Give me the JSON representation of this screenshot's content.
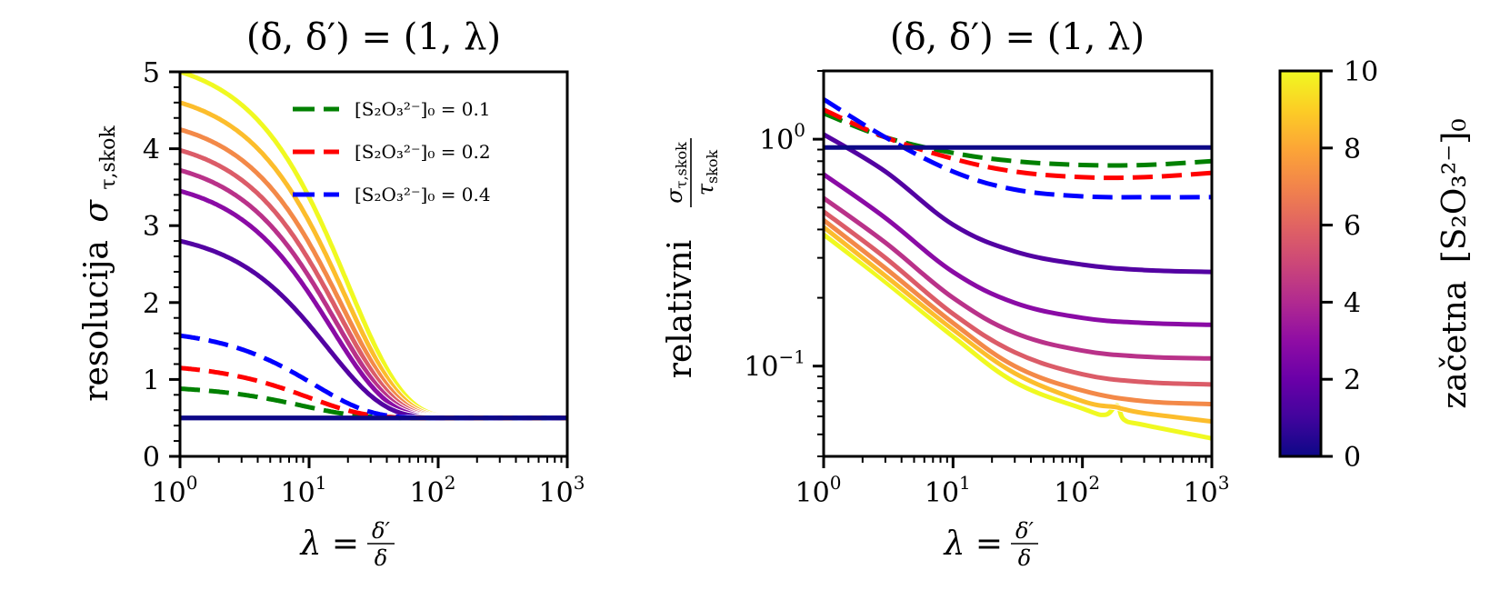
{
  "chart_data": [
    {
      "type": "line",
      "panel": "left",
      "title": "(δ, δ′) = (1, λ)",
      "xlabel": "λ = δ′/δ",
      "ylabel": "resolucija σ_{τ,skok}",
      "xscale": "log",
      "yscale": "linear",
      "xlim": [
        1,
        1000
      ],
      "ylim": [
        0,
        5
      ],
      "xticks": [
        "10^0",
        "10^1",
        "10^2",
        "10^3"
      ],
      "yticks": [
        "0",
        "1",
        "2",
        "3",
        "4",
        "5"
      ],
      "solid_series": [
        {
          "c": 0.0,
          "y_start": 0.5,
          "y_end": 0.5,
          "decay": 20
        },
        {
          "c": 1.43,
          "y_start": 2.8,
          "y_end": 0.5,
          "decay": 14
        },
        {
          "c": 2.86,
          "y_start": 3.45,
          "y_end": 0.5,
          "decay": 15
        },
        {
          "c": 4.29,
          "y_start": 3.72,
          "y_end": 0.5,
          "decay": 16
        },
        {
          "c": 5.71,
          "y_start": 3.98,
          "y_end": 0.5,
          "decay": 17
        },
        {
          "c": 7.14,
          "y_start": 4.25,
          "y_end": 0.5,
          "decay": 18
        },
        {
          "c": 8.57,
          "y_start": 4.6,
          "y_end": 0.5,
          "decay": 19
        },
        {
          "c": 10.0,
          "y_start": 5.0,
          "y_end": 0.5,
          "decay": 20
        }
      ],
      "dashed_series": [
        {
          "name": "[S2O3^2-]0 = 0.1",
          "color": "#008000",
          "y_start": 0.88,
          "y_end": 0.5,
          "decay": 9
        },
        {
          "name": "[S2O3^2-]0 = 0.2",
          "color": "#ff0000",
          "y_start": 1.15,
          "y_end": 0.5,
          "decay": 10
        },
        {
          "name": "[S2O3^2-]0 = 0.4",
          "color": "#0000ff",
          "y_start": 1.57,
          "y_end": 0.5,
          "decay": 11
        }
      ],
      "legend": {
        "placement": "upper-right",
        "entries": [
          {
            "label": "[S₂O₃²⁻]₀ = 0.1",
            "color": "#008000"
          },
          {
            "label": "[S₂O₃²⁻]₀ = 0.2",
            "color": "#ff0000"
          },
          {
            "label": "[S₂O₃²⁻]₀ = 0.4",
            "color": "#0000ff"
          }
        ]
      }
    },
    {
      "type": "line",
      "panel": "right",
      "title": "(δ, δ′) = (1, λ)",
      "xlabel": "λ = δ′/δ",
      "ylabel": "relativni σ_{τ,skok}/τ_{skok}",
      "xscale": "log",
      "yscale": "log",
      "xlim": [
        1,
        1000
      ],
      "ylim": [
        0.04,
        2
      ],
      "xticks": [
        "10^0",
        "10^1",
        "10^2",
        "10^3"
      ],
      "yticks": [
        "10^-1",
        "10^0"
      ],
      "solid_series": [
        {
          "c": 0.0,
          "points": [
            [
              1,
              0.92
            ],
            [
              10,
              0.92
            ],
            [
              100,
              0.92
            ],
            [
              1000,
              0.92
            ]
          ]
        },
        {
          "c": 1.43,
          "points": [
            [
              1,
              1.05
            ],
            [
              3,
              0.72
            ],
            [
              10,
              0.42
            ],
            [
              30,
              0.32
            ],
            [
              100,
              0.28
            ],
            [
              300,
              0.265
            ],
            [
              1000,
              0.26
            ]
          ]
        },
        {
          "c": 2.86,
          "points": [
            [
              1,
              0.7
            ],
            [
              3,
              0.45
            ],
            [
              10,
              0.26
            ],
            [
              30,
              0.19
            ],
            [
              100,
              0.163
            ],
            [
              300,
              0.155
            ],
            [
              1000,
              0.152
            ]
          ]
        },
        {
          "c": 4.29,
          "points": [
            [
              1,
              0.55
            ],
            [
              3,
              0.35
            ],
            [
              10,
              0.2
            ],
            [
              30,
              0.14
            ],
            [
              100,
              0.117
            ],
            [
              300,
              0.11
            ],
            [
              1000,
              0.108
            ]
          ]
        },
        {
          "c": 5.71,
          "points": [
            [
              1,
              0.48
            ],
            [
              3,
              0.3
            ],
            [
              10,
              0.17
            ],
            [
              30,
              0.115
            ],
            [
              100,
              0.092
            ],
            [
              300,
              0.085
            ],
            [
              1000,
              0.083
            ]
          ]
        },
        {
          "c": 7.14,
          "points": [
            [
              1,
              0.44
            ],
            [
              3,
              0.27
            ],
            [
              10,
              0.155
            ],
            [
              30,
              0.1
            ],
            [
              100,
              0.078
            ],
            [
              300,
              0.07
            ],
            [
              1000,
              0.068
            ]
          ]
        },
        {
          "c": 8.57,
          "points": [
            [
              1,
              0.41
            ],
            [
              3,
              0.25
            ],
            [
              10,
              0.145
            ],
            [
              30,
              0.093
            ],
            [
              100,
              0.07
            ],
            [
              180,
              0.066
            ],
            [
              200,
              0.065
            ],
            [
              300,
              0.062
            ],
            [
              1000,
              0.057
            ]
          ]
        },
        {
          "c": 10.0,
          "points": [
            [
              1,
              0.38
            ],
            [
              3,
              0.235
            ],
            [
              10,
              0.135
            ],
            [
              30,
              0.085
            ],
            [
              100,
              0.065
            ],
            [
              150,
              0.061
            ],
            [
              185,
              0.067
            ],
            [
              210,
              0.058
            ],
            [
              300,
              0.055
            ],
            [
              1000,
              0.048
            ]
          ]
        }
      ],
      "dashed_series": [
        {
          "name": "[S2O3^2-]0 = 0.1",
          "color": "#008000",
          "points": [
            [
              1,
              1.3
            ],
            [
              3,
              1.02
            ],
            [
              10,
              0.87
            ],
            [
              30,
              0.8
            ],
            [
              100,
              0.77
            ],
            [
              300,
              0.77
            ],
            [
              1000,
              0.8
            ]
          ]
        },
        {
          "name": "[S2O3^2-]0 = 0.2",
          "color": "#ff0000",
          "points": [
            [
              1,
              1.35
            ],
            [
              3,
              1.02
            ],
            [
              10,
              0.82
            ],
            [
              30,
              0.72
            ],
            [
              100,
              0.68
            ],
            [
              300,
              0.68
            ],
            [
              1000,
              0.71
            ]
          ]
        },
        {
          "name": "[S2O3^2-]0 = 0.4",
          "color": "#0000ff",
          "points": [
            [
              1,
              1.5
            ],
            [
              3,
              1.02
            ],
            [
              10,
              0.72
            ],
            [
              30,
              0.6
            ],
            [
              100,
              0.56
            ],
            [
              300,
              0.555
            ],
            [
              1000,
              0.555
            ]
          ]
        }
      ]
    },
    {
      "type": "heatmap",
      "panel": "colorbar",
      "colormap": "plasma",
      "range": [
        0,
        10
      ],
      "ticks": [
        "0",
        "2",
        "4",
        "6",
        "8",
        "10"
      ],
      "label": "začetna [S₂O₃²⁻]₀"
    }
  ],
  "text": {
    "left_title": "(δ, δ′) = (1, λ)",
    "right_title": "(δ, δ′) = (1, λ)",
    "left_ylabel_word": "resolucija",
    "right_ylabel_word": "relativni",
    "sigma_sym": "σ",
    "tau_sym": "τ",
    "sub_tau_skok": "τ,skok",
    "sub_skok": "skok",
    "xlabel_lambda": "λ =",
    "xlabel_num": "δ′",
    "xlabel_den": "δ",
    "colorbar_label_word": "začetna",
    "colorbar_label_species": "[S₂O₃²⁻]₀",
    "legend": [
      "[S₂O₃²⁻]₀ = 0.1",
      "[S₂O₃²⁻]₀ = 0.2",
      "[S₂O₃²⁻]₀ = 0.4"
    ],
    "x_tick_base": "10",
    "x_tick_exp": [
      "0",
      "1",
      "2",
      "3"
    ],
    "left_y_ticks": [
      "0",
      "1",
      "2",
      "3",
      "4",
      "5"
    ],
    "right_y_tick_base": "10",
    "right_y_tick_exp": [
      "0",
      "−1"
    ],
    "cbar_ticks": [
      "0",
      "2",
      "4",
      "6",
      "8",
      "10"
    ]
  }
}
